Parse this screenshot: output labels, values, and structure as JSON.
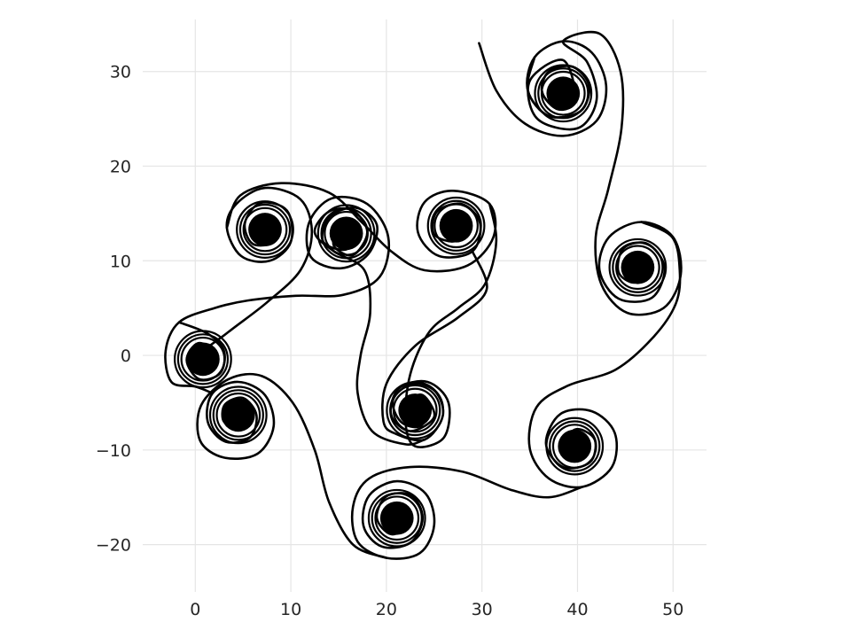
{
  "chart_data": {
    "type": "line",
    "title": "",
    "xlabel": "",
    "ylabel": "",
    "xlim": [
      -5.5,
      53.5
    ],
    "ylim": [
      -25,
      35.5
    ],
    "xticks": [
      0,
      10,
      20,
      30,
      40,
      50
    ],
    "yticks": [
      -20,
      -10,
      0,
      10,
      20,
      30
    ],
    "xtick_labels": [
      "0",
      "10",
      "20",
      "30",
      "40",
      "50"
    ],
    "ytick_labels": [
      "−20",
      "−10",
      "0",
      "10",
      "20",
      "30"
    ],
    "grid": true,
    "line_color": "#000000",
    "background": "#ffffff",
    "centers": [
      {
        "x": 38.5,
        "y": 27.7,
        "dir": 1
      },
      {
        "x": 46.3,
        "y": 9.3,
        "dir": -1
      },
      {
        "x": 39.7,
        "y": -9.6,
        "dir": 1
      },
      {
        "x": 21.1,
        "y": -17.2,
        "dir": -1
      },
      {
        "x": 4.5,
        "y": -6.3,
        "dir": 1
      },
      {
        "x": 0.8,
        "y": -0.4,
        "dir": -1
      },
      {
        "x": 7.3,
        "y": 13.3,
        "dir": 1
      },
      {
        "x": 15.8,
        "y": 12.9,
        "dir": -1
      },
      {
        "x": 23.0,
        "y": -5.8,
        "dir": 1
      },
      {
        "x": 27.3,
        "y": 13.7,
        "dir": -1
      }
    ],
    "series": [
      {
        "points": [
          [
            29.7,
            33.0
          ],
          [
            31.5,
            28.0
          ],
          [
            34.5,
            24.5
          ],
          [
            38.5,
            23.2
          ],
          [
            42.0,
            24.8
          ],
          [
            43.0,
            28.5
          ],
          [
            41.5,
            32.0
          ],
          [
            38.5,
            33.2
          ],
          [
            35.5,
            31.5
          ],
          [
            34.8,
            28.0
          ],
          [
            37.0,
            25.3
          ],
          [
            40.3,
            25.8
          ],
          [
            41.2,
            28.5
          ],
          [
            39.5,
            30.5
          ],
          [
            37.0,
            30.0
          ],
          [
            36.3,
            27.8
          ],
          [
            38.0,
            26.0
          ],
          [
            39.8,
            27.0
          ],
          [
            39.5,
            28.8
          ],
          [
            37.8,
            29.0
          ]
        ]
      },
      {
        "points": [
          [
            35.5,
            31.5
          ],
          [
            34.8,
            28.0
          ],
          [
            37.0,
            25.3
          ],
          [
            40.3,
            25.8
          ],
          [
            41.2,
            28.5
          ],
          [
            39.5,
            30.5
          ],
          [
            37.0,
            30.0
          ],
          [
            36.3,
            27.8
          ],
          [
            38.0,
            26.0
          ],
          [
            39.8,
            27.0
          ],
          [
            38.5,
            31.2
          ],
          [
            35.0,
            29.0
          ],
          [
            35.8,
            25.0
          ],
          [
            40.0,
            24.0
          ],
          [
            42.0,
            27.0
          ],
          [
            41.0,
            31.0
          ],
          [
            38.5,
            33.2
          ],
          [
            42.3,
            34.0
          ],
          [
            44.5,
            30.0
          ],
          [
            44.6,
            24.0
          ],
          [
            43.2,
            17.5
          ],
          [
            41.9,
            12.5
          ],
          [
            42.5,
            7.5
          ],
          [
            45.2,
            4.5
          ],
          [
            49.0,
            5.0
          ],
          [
            50.8,
            8.5
          ],
          [
            50.0,
            12.5
          ],
          [
            46.7,
            14.1
          ],
          [
            43.3,
            12.5
          ],
          [
            42.3,
            9.0
          ],
          [
            44.3,
            6.0
          ],
          [
            47.8,
            6.1
          ],
          [
            49.1,
            9.3
          ],
          [
            47.3,
            11.8
          ],
          [
            44.8,
            11.3
          ],
          [
            44.3,
            8.8
          ],
          [
            46.0,
            7.7
          ],
          [
            47.4,
            9.3
          ],
          [
            46.3,
            10.4
          ]
        ]
      },
      {
        "points": [
          [
            46.7,
            14.1
          ],
          [
            49.9,
            12.5
          ],
          [
            50.7,
            9.0
          ],
          [
            50.3,
            5.5
          ],
          [
            48.0,
            2.0
          ],
          [
            44.0,
            -1.5
          ],
          [
            39.0,
            -3.2
          ],
          [
            35.7,
            -5.5
          ],
          [
            35.0,
            -9.8
          ],
          [
            37.0,
            -13.0
          ],
          [
            40.5,
            -13.9
          ],
          [
            43.6,
            -11.8
          ],
          [
            43.9,
            -8.2
          ],
          [
            41.5,
            -5.9
          ],
          [
            38.2,
            -6.2
          ],
          [
            36.7,
            -9.3
          ],
          [
            38.5,
            -11.8
          ],
          [
            41.3,
            -11.3
          ],
          [
            41.8,
            -8.9
          ],
          [
            39.9,
            -7.8
          ],
          [
            38.5,
            -9.3
          ],
          [
            39.7,
            -10.5
          ]
        ]
      },
      {
        "points": [
          [
            40.5,
            -13.9
          ],
          [
            37.0,
            -15.0
          ],
          [
            33.0,
            -14.2
          ],
          [
            28.0,
            -12.3
          ],
          [
            22.5,
            -11.8
          ],
          [
            18.2,
            -13.0
          ],
          [
            16.5,
            -16.0
          ],
          [
            17.0,
            -19.7
          ],
          [
            20.0,
            -21.4
          ],
          [
            23.5,
            -20.9
          ],
          [
            25.0,
            -17.9
          ],
          [
            24.1,
            -14.6
          ],
          [
            21.1,
            -13.3
          ],
          [
            18.2,
            -14.8
          ],
          [
            17.6,
            -18.0
          ],
          [
            19.5,
            -20.2
          ],
          [
            22.5,
            -19.8
          ],
          [
            23.8,
            -17.2
          ],
          [
            22.6,
            -14.8
          ],
          [
            20.0,
            -14.9
          ],
          [
            19.0,
            -17.2
          ],
          [
            20.5,
            -18.9
          ],
          [
            22.3,
            -17.9
          ],
          [
            21.7,
            -16.3
          ],
          [
            20.6,
            -16.8
          ]
        ]
      },
      {
        "points": [
          [
            20.0,
            -21.4
          ],
          [
            16.5,
            -20.0
          ],
          [
            14.0,
            -15.5
          ],
          [
            12.5,
            -10.0
          ],
          [
            10.2,
            -5.0
          ],
          [
            7.0,
            -2.2
          ],
          [
            3.5,
            -2.5
          ],
          [
            0.6,
            -5.3
          ],
          [
            0.5,
            -9.0
          ],
          [
            3.0,
            -10.8
          ],
          [
            6.5,
            -10.4
          ],
          [
            8.2,
            -7.5
          ],
          [
            7.3,
            -4.2
          ],
          [
            4.5,
            -2.8
          ],
          [
            1.8,
            -4.0
          ],
          [
            1.3,
            -7.0
          ],
          [
            3.1,
            -9.1
          ],
          [
            5.7,
            -8.7
          ],
          [
            6.4,
            -6.3
          ],
          [
            5.0,
            -4.5
          ],
          [
            3.1,
            -5.2
          ],
          [
            3.0,
            -7.0
          ],
          [
            4.6,
            -7.5
          ],
          [
            5.4,
            -6.4
          ]
        ]
      },
      {
        "points": [
          [
            1.8,
            -4.0
          ],
          [
            0.0,
            -3.3
          ],
          [
            -2.5,
            -2.8
          ],
          [
            -3.1,
            0.5
          ],
          [
            -1.7,
            3.5
          ],
          [
            2.0,
            5.0
          ],
          [
            5.5,
            5.8
          ],
          [
            10.5,
            6.3
          ],
          [
            15.5,
            6.4
          ],
          [
            19.3,
            8.3
          ],
          [
            20.2,
            12.5
          ],
          [
            18.0,
            16.0
          ],
          [
            14.3,
            16.6
          ],
          [
            11.9,
            14.0
          ],
          [
            12.1,
            10.4
          ],
          [
            15.2,
            9.2
          ],
          [
            18.1,
            10.7
          ],
          [
            19.0,
            13.8
          ],
          [
            16.8,
            15.6
          ],
          [
            14.0,
            14.6
          ],
          [
            13.4,
            12.0
          ],
          [
            15.8,
            11.2
          ],
          [
            16.9,
            13.0
          ]
        ]
      },
      {
        "points": [
          [
            -1.7,
            3.5
          ],
          [
            1.3,
            2.3
          ],
          [
            3.0,
            0.5
          ],
          [
            2.6,
            -1.9
          ],
          [
            0.4,
            -2.5
          ],
          [
            -0.9,
            -0.5
          ],
          [
            0.3,
            1.3
          ],
          [
            2.1,
            0.3
          ],
          [
            1.4,
            -1.3
          ],
          [
            0.2,
            -0.2
          ],
          [
            3.5,
            2.5
          ],
          [
            7.5,
            5.6
          ],
          [
            11.0,
            9.0
          ],
          [
            12.2,
            13.0
          ],
          [
            11.0,
            16.5
          ],
          [
            7.3,
            17.7
          ],
          [
            4.3,
            16.0
          ],
          [
            3.3,
            13.5
          ],
          [
            4.8,
            10.5
          ],
          [
            7.8,
            10.0
          ],
          [
            10.0,
            12.0
          ],
          [
            9.6,
            15.3
          ],
          [
            6.8,
            16.1
          ],
          [
            5.2,
            14.0
          ],
          [
            6.0,
            11.8
          ],
          [
            8.3,
            12.0
          ],
          [
            8.5,
            14.1
          ],
          [
            7.1,
            14.6
          ],
          [
            6.3,
            13.3
          ]
        ]
      },
      {
        "points": [
          [
            3.3,
            13.5
          ],
          [
            4.7,
            16.9
          ],
          [
            9.0,
            18.2
          ],
          [
            14.0,
            17.2
          ],
          [
            17.5,
            14.0
          ],
          [
            20.5,
            11.0
          ],
          [
            24.0,
            9.0
          ],
          [
            28.5,
            9.5
          ],
          [
            31.2,
            12.5
          ],
          [
            30.8,
            16.0
          ],
          [
            27.0,
            17.4
          ],
          [
            24.0,
            16.2
          ],
          [
            23.3,
            13.0
          ],
          [
            25.5,
            10.5
          ],
          [
            29.0,
            11.0
          ],
          [
            29.8,
            14.0
          ],
          [
            27.9,
            16.0
          ],
          [
            25.3,
            15.2
          ],
          [
            25.0,
            12.8
          ],
          [
            27.3,
            12.1
          ],
          [
            28.5,
            14.0
          ],
          [
            27.2,
            15.0
          ]
        ]
      },
      {
        "points": [
          [
            29.0,
            11.0
          ],
          [
            30.5,
            7.0
          ],
          [
            27.5,
            4.0
          ],
          [
            23.0,
            1.0
          ],
          [
            20.0,
            -3.0
          ],
          [
            19.7,
            -7.0
          ],
          [
            21.0,
            -8.3
          ],
          [
            24.0,
            -8.9
          ],
          [
            25.9,
            -6.4
          ],
          [
            25.1,
            -3.8
          ],
          [
            22.7,
            -3.0
          ],
          [
            20.7,
            -4.7
          ],
          [
            21.5,
            -7.0
          ],
          [
            23.5,
            -7.5
          ],
          [
            24.5,
            -5.6
          ],
          [
            23.0,
            -4.6
          ],
          [
            22.0,
            -5.8
          ],
          [
            23.0,
            -6.4
          ]
        ]
      },
      {
        "points": [
          [
            24.0,
            -8.9
          ],
          [
            22.0,
            -9.4
          ],
          [
            18.5,
            -8.0
          ],
          [
            17.0,
            -4.0
          ],
          [
            17.3,
            0.0
          ],
          [
            18.3,
            4.5
          ],
          [
            17.7,
            9.0
          ],
          [
            14.5,
            11.0
          ],
          [
            12.5,
            13.0
          ],
          [
            14.0,
            15.2
          ],
          [
            16.5,
            15.3
          ],
          [
            18.0,
            13.0
          ],
          [
            16.5,
            10.6
          ],
          [
            14.5,
            11.6
          ],
          [
            15.1,
            13.6
          ],
          [
            16.7,
            13.3
          ]
        ]
      },
      {
        "points": [
          [
            30.8,
            16.0
          ],
          [
            31.5,
            12.0
          ],
          [
            30.3,
            7.5
          ],
          [
            27.5,
            5.0
          ],
          [
            24.5,
            2.5
          ],
          [
            22.5,
            -2.0
          ],
          [
            22.0,
            -7.0
          ],
          [
            23.0,
            -9.6
          ],
          [
            26.0,
            -8.7
          ],
          [
            26.5,
            -5.0
          ],
          [
            24.3,
            -2.8
          ],
          [
            21.3,
            -3.5
          ],
          [
            20.5,
            -6.3
          ],
          [
            22.5,
            -8.0
          ],
          [
            25.0,
            -6.5
          ],
          [
            23.8,
            -4.2
          ],
          [
            22.3,
            -5.0
          ],
          [
            22.8,
            -6.6
          ]
        ]
      }
    ]
  }
}
